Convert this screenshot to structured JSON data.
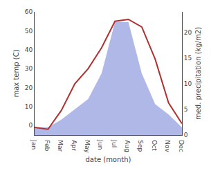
{
  "chart_data": {
    "type": "line",
    "xlabel": "date (month)",
    "ylabel": "max temp (C)",
    "y2label": "med. precipitation (kg/m2)",
    "categories": [
      "Jan",
      "Feb",
      "Mar",
      "Apr",
      "May",
      "Jun",
      "Jul",
      "Aug",
      "Sep",
      "Oct",
      "Nov",
      "Dec"
    ],
    "series": [
      {
        "type": "area",
        "axis": "y2",
        "color": "#b0b8e8",
        "values": [
          1.5,
          1.5,
          3.0,
          5.0,
          7.0,
          12.0,
          22.0,
          22.0,
          12.0,
          6.0,
          4.0,
          1.5
        ]
      },
      {
        "type": "line",
        "color": "#b03030",
        "values": [
          -1,
          -2,
          8,
          22,
          30,
          41,
          55,
          56,
          52,
          35,
          12,
          1
        ]
      }
    ],
    "ylim": [
      -5,
      60
    ],
    "yticks": [
      0,
      10,
      20,
      30,
      40,
      50,
      60
    ],
    "y2lim": [
      0,
      24
    ],
    "y2ticks": [
      0,
      5,
      10,
      15,
      20
    ],
    "grid": false
  }
}
